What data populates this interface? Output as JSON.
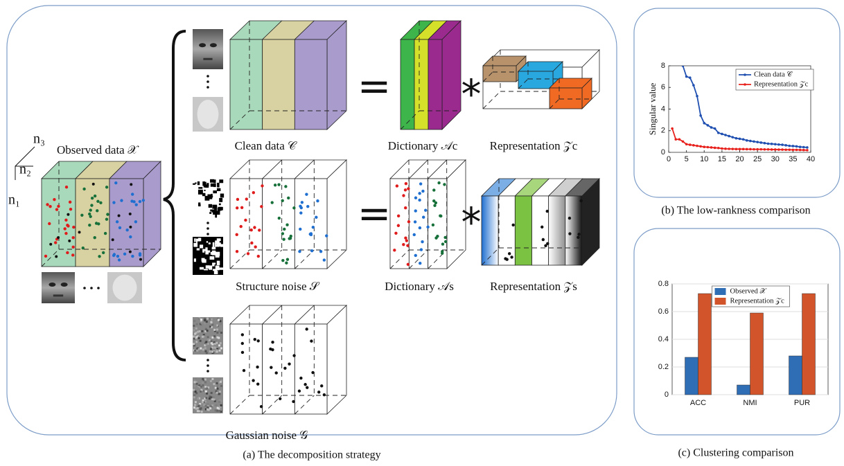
{
  "diagram": {
    "caption_a": "(a)  The decomposition strategy",
    "caption_b": "(b)  The low-rankness comparison",
    "caption_c": "(c)  Clustering comparison",
    "observed": "Observed data 𝒳",
    "axis_n1": "n₁",
    "axis_n2": "n₂",
    "axis_n3": "n₃",
    "clean": "Clean data 𝒞",
    "dict_c": "Dictionary 𝒜c",
    "rep_c": "Representation 𝒵c",
    "structure": "Structure noise 𝒮",
    "dict_s": "Dictionary 𝒜s",
    "rep_s": "Representation 𝒵s",
    "gaussian": "Gaussian noise 𝒢",
    "equals": "=",
    "times": "*"
  },
  "chart_data": [
    {
      "type": "line",
      "ylabel": "Singular value",
      "x": [
        1,
        2,
        3,
        4,
        5,
        6,
        7,
        8,
        9,
        10,
        11,
        12,
        13,
        14,
        15,
        16,
        17,
        18,
        19,
        20,
        21,
        22,
        23,
        24,
        25,
        26,
        27,
        28,
        29,
        30,
        31,
        32,
        33,
        34,
        35,
        36,
        37,
        38,
        39
      ],
      "series": [
        {
          "name": "Clean data 𝒞",
          "color": "#1f4fb0",
          "values": [
            null,
            null,
            null,
            8.0,
            7.0,
            6.9,
            6.2,
            5.2,
            3.4,
            2.7,
            2.5,
            2.3,
            2.2,
            1.8,
            1.7,
            1.6,
            1.5,
            1.4,
            1.3,
            1.25,
            1.2,
            1.1,
            1.05,
            1.0,
            0.95,
            0.9,
            0.85,
            0.8,
            0.78,
            0.75,
            0.72,
            0.7,
            0.65,
            0.6,
            0.58,
            0.55,
            0.5,
            0.48,
            0.45
          ]
        },
        {
          "name": "Representation 𝒵c",
          "color": "#e8201c",
          "values": [
            2.2,
            1.2,
            1.2,
            1.0,
            0.75,
            0.7,
            0.65,
            0.6,
            0.55,
            0.5,
            0.48,
            0.45,
            0.42,
            0.4,
            0.35,
            0.33,
            0.32,
            0.31,
            0.3,
            0.3,
            0.3,
            0.29,
            0.29,
            0.28,
            0.28,
            0.28,
            0.27,
            0.27,
            0.26,
            0.26,
            0.25,
            0.25,
            0.24,
            0.24,
            0.23,
            0.23,
            0.22,
            0.21,
            0.2
          ]
        }
      ],
      "xlim": [
        0,
        40
      ],
      "xticks": [
        0,
        5,
        10,
        15,
        20,
        25,
        30,
        35,
        40
      ],
      "ylim": [
        0,
        8
      ],
      "yticks": [
        0,
        2,
        4,
        6,
        8
      ],
      "legend": "upper right"
    },
    {
      "type": "bar",
      "categories": [
        "ACC",
        "NMI",
        "PUR"
      ],
      "series": [
        {
          "name": "Observed 𝒳",
          "color": "#2f6db5",
          "values": [
            0.27,
            0.07,
            0.28
          ]
        },
        {
          "name": "Representation 𝒵c",
          "color": "#d2542a",
          "values": [
            0.73,
            0.59,
            0.73
          ]
        }
      ],
      "ylim": [
        0,
        0.8
      ],
      "yticks": [
        0,
        0.2,
        0.4,
        0.6,
        0.8
      ],
      "grid": true,
      "legend": "upper center"
    }
  ]
}
